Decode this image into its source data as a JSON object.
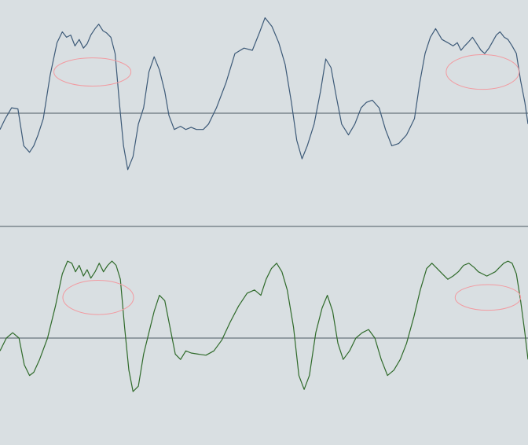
{
  "background": "#d9dfe2",
  "chart_data": [
    {
      "type": "line",
      "title": "",
      "xlabel": "",
      "ylabel": "",
      "xlim": [
        0,
        1
      ],
      "ylim": [
        -1,
        1
      ],
      "grid": false,
      "baseline": 0,
      "baseline_color": "#4a5a62",
      "color": "#3d5a78",
      "highlights": [
        {
          "x_center": 0.175,
          "y_center": 0.38,
          "rx": 0.073,
          "ry": 0.13,
          "color": "#f29aa0"
        },
        {
          "x_center": 0.914,
          "y_center": 0.38,
          "rx": 0.069,
          "ry": 0.16,
          "color": "#f29aa0"
        }
      ],
      "series": [
        {
          "x": [
            0.0,
            0.01,
            0.022,
            0.034,
            0.045,
            0.056,
            0.064,
            0.072,
            0.082,
            0.095,
            0.108,
            0.118,
            0.126,
            0.134,
            0.142,
            0.15,
            0.158,
            0.165,
            0.172,
            0.18,
            0.187,
            0.195,
            0.202,
            0.21,
            0.218,
            0.226,
            0.234,
            0.242,
            0.252,
            0.262,
            0.272,
            0.282,
            0.292,
            0.302,
            0.312,
            0.32,
            0.33,
            0.342,
            0.352,
            0.362,
            0.372,
            0.385,
            0.395,
            0.41,
            0.428,
            0.445,
            0.462,
            0.478,
            0.492,
            0.502,
            0.515,
            0.528,
            0.54,
            0.552,
            0.562,
            0.572,
            0.582,
            0.595,
            0.607,
            0.617,
            0.627,
            0.637,
            0.647,
            0.66,
            0.672,
            0.684,
            0.694,
            0.705,
            0.718,
            0.73,
            0.742,
            0.755,
            0.77,
            0.785,
            0.795,
            0.805,
            0.815,
            0.825,
            0.837,
            0.848,
            0.858,
            0.866,
            0.873,
            0.88,
            0.888,
            0.895,
            0.903,
            0.911,
            0.918,
            0.926,
            0.933,
            0.94,
            0.947,
            0.955,
            0.962,
            0.97,
            0.978,
            0.986,
            0.994,
            1.0
          ],
          "y": [
            -0.15,
            -0.05,
            0.05,
            0.04,
            -0.3,
            -0.36,
            -0.3,
            -0.2,
            -0.05,
            0.35,
            0.65,
            0.75,
            0.7,
            0.72,
            0.62,
            0.68,
            0.6,
            0.64,
            0.72,
            0.78,
            0.82,
            0.76,
            0.74,
            0.7,
            0.55,
            0.1,
            -0.3,
            -0.52,
            -0.4,
            -0.1,
            0.05,
            0.38,
            0.52,
            0.4,
            0.2,
            -0.02,
            -0.15,
            -0.12,
            -0.15,
            -0.13,
            -0.15,
            -0.15,
            -0.1,
            0.05,
            0.28,
            0.55,
            0.6,
            0.58,
            0.75,
            0.88,
            0.8,
            0.65,
            0.45,
            0.1,
            -0.25,
            -0.42,
            -0.3,
            -0.1,
            0.2,
            0.5,
            0.42,
            0.15,
            -0.1,
            -0.2,
            -0.1,
            0.05,
            0.1,
            0.12,
            0.05,
            -0.15,
            -0.3,
            -0.28,
            -0.2,
            -0.05,
            0.28,
            0.55,
            0.7,
            0.78,
            0.68,
            0.65,
            0.62,
            0.65,
            0.58,
            0.62,
            0.66,
            0.7,
            0.64,
            0.58,
            0.55,
            0.6,
            0.66,
            0.72,
            0.75,
            0.7,
            0.68,
            0.62,
            0.55,
            0.3,
            0.1,
            -0.1
          ]
        }
      ]
    },
    {
      "type": "line",
      "title": "",
      "xlabel": "",
      "ylabel": "",
      "xlim": [
        0,
        1
      ],
      "ylim": [
        -1,
        1
      ],
      "grid": false,
      "baseline": 0,
      "baseline_color": "#4a5a62",
      "color": "#2f6a2a",
      "highlights": [
        {
          "x_center": 0.186,
          "y_center": 0.38,
          "rx": 0.067,
          "ry": 0.16,
          "color": "#f29aa0"
        },
        {
          "x_center": 0.924,
          "y_center": 0.38,
          "rx": 0.062,
          "ry": 0.12,
          "color": "#f29aa0"
        }
      ],
      "series": [
        {
          "x": [
            0.0,
            0.012,
            0.024,
            0.036,
            0.046,
            0.056,
            0.064,
            0.075,
            0.09,
            0.105,
            0.118,
            0.128,
            0.136,
            0.143,
            0.15,
            0.158,
            0.165,
            0.172,
            0.18,
            0.188,
            0.196,
            0.204,
            0.212,
            0.22,
            0.228,
            0.236,
            0.244,
            0.252,
            0.262,
            0.272,
            0.282,
            0.292,
            0.302,
            0.312,
            0.322,
            0.332,
            0.342,
            0.352,
            0.362,
            0.375,
            0.39,
            0.405,
            0.42,
            0.436,
            0.452,
            0.468,
            0.482,
            0.494,
            0.504,
            0.514,
            0.524,
            0.534,
            0.544,
            0.556,
            0.566,
            0.576,
            0.586,
            0.598,
            0.61,
            0.62,
            0.63,
            0.64,
            0.65,
            0.662,
            0.674,
            0.686,
            0.698,
            0.71,
            0.722,
            0.734,
            0.746,
            0.758,
            0.77,
            0.784,
            0.796,
            0.808,
            0.818,
            0.828,
            0.838,
            0.848,
            0.858,
            0.868,
            0.878,
            0.888,
            0.898,
            0.906,
            0.914,
            0.922,
            0.93,
            0.938,
            0.946,
            0.954,
            0.962,
            0.97,
            0.978,
            0.986,
            0.994,
            1.0
          ],
          "y": [
            -0.12,
            0.0,
            0.05,
            0.0,
            -0.25,
            -0.35,
            -0.32,
            -0.2,
            0.0,
            0.3,
            0.6,
            0.72,
            0.7,
            0.62,
            0.68,
            0.58,
            0.64,
            0.56,
            0.62,
            0.7,
            0.62,
            0.68,
            0.72,
            0.68,
            0.55,
            0.1,
            -0.3,
            -0.5,
            -0.45,
            -0.15,
            0.05,
            0.25,
            0.4,
            0.35,
            0.1,
            -0.15,
            -0.2,
            -0.12,
            -0.14,
            -0.15,
            -0.16,
            -0.12,
            -0.02,
            0.15,
            0.3,
            0.42,
            0.45,
            0.4,
            0.55,
            0.65,
            0.7,
            0.62,
            0.45,
            0.1,
            -0.35,
            -0.48,
            -0.35,
            0.05,
            0.28,
            0.4,
            0.25,
            -0.05,
            -0.2,
            -0.12,
            0.0,
            0.05,
            0.08,
            0.0,
            -0.2,
            -0.35,
            -0.3,
            -0.2,
            -0.05,
            0.2,
            0.45,
            0.65,
            0.7,
            0.65,
            0.6,
            0.55,
            0.58,
            0.62,
            0.68,
            0.7,
            0.66,
            0.62,
            0.6,
            0.58,
            0.6,
            0.62,
            0.66,
            0.7,
            0.72,
            0.7,
            0.6,
            0.35,
            0.05,
            -0.2
          ]
        }
      ]
    }
  ]
}
